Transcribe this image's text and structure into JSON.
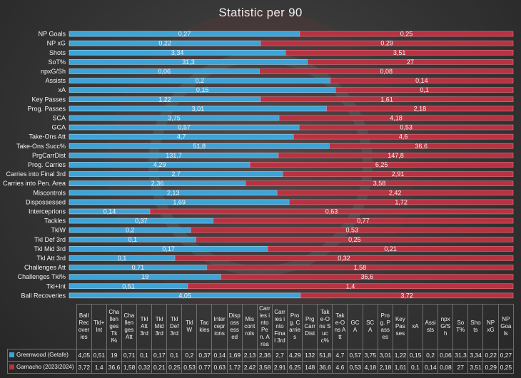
{
  "chart_data": {
    "type": "bar",
    "orientation": "horizontal-stacked-100",
    "title": "Statistic per 90",
    "series": [
      {
        "name": "Greenwood (Getafe)",
        "color": "#3ea3d6",
        "values": [
          0.27,
          0.22,
          3.34,
          31.3,
          0.06,
          0.2,
          0.15,
          1.22,
          3.01,
          3.75,
          0.57,
          4.7,
          51.8,
          131.7,
          4.29,
          2.7,
          2.36,
          2.13,
          1.69,
          0.14,
          0.37,
          0.2,
          0.1,
          0.17,
          0.1,
          0.71,
          19,
          0.51,
          4.05
        ],
        "labels": [
          "0,27",
          "0,22",
          "3,34",
          "31,3",
          "0,06",
          "0,2",
          "0,15",
          "1,22",
          "3,01",
          "3,75",
          "0,57",
          "4,7",
          "51,8",
          "131,7",
          "4,29",
          "2,7",
          "2,36",
          "2,13",
          "1,69",
          "0,14",
          "0,37",
          "0,2",
          "0,1",
          "0,17",
          "0,1",
          "0,71",
          "19",
          "0,51",
          "4,05"
        ]
      },
      {
        "name": "Garnacho (2023/2024)",
        "color": "#b83242",
        "values": [
          0.25,
          0.29,
          3.51,
          27,
          0.08,
          0.14,
          0.1,
          1.61,
          2.18,
          4.18,
          0.53,
          4.6,
          36.6,
          147.8,
          6.25,
          2.91,
          3.58,
          2.42,
          1.72,
          0.63,
          0.77,
          0.53,
          0.25,
          0.21,
          0.32,
          1.58,
          36.6,
          1.4,
          3.72
        ],
        "labels": [
          "0,25",
          "0,29",
          "3,51",
          "27",
          "0,08",
          "0,14",
          "0,1",
          "1,61",
          "2,18",
          "4,18",
          "0,53",
          "4,6",
          "36,6",
          "147,8",
          "6,25",
          "2,91",
          "3,58",
          "2,42",
          "1,72",
          "0,63",
          "0,77",
          "0,53",
          "0,25",
          "0,21",
          "0,32",
          "1,58",
          "36,6",
          "1,4",
          "3,72"
        ]
      }
    ],
    "categories": [
      "NP Goals",
      "NP xG",
      "Shots",
      "SoT%",
      "npxG/Sh",
      "Assists",
      "xA",
      "Key Passes",
      "Prog. Passes",
      "SCA",
      "GCA",
      "Take-Ons Att",
      "Take-Ons Succ%",
      "PrgCarrDist",
      "Prog. Carries",
      "Carries into Final 3rd",
      "Carries into Pen. Area",
      "Miscontrols",
      "Dispossessed",
      "Interceprions",
      "Tackles",
      "TklW",
      "Tkl Def 3rd",
      "Tkl Mid 3rd",
      "Tkl Att 3rd",
      "Challenges Att",
      "Challenges Tkl%",
      "Tkl+Int",
      "Ball Recoveries"
    ],
    "table": {
      "headers": [
        "Ball Recoveries",
        "Tkl+Int",
        "Challenges Tkl%",
        "Challenges Att",
        "Tkl Att 3rd",
        "Tkl Mid 3rd",
        "Tkl Def 3rd",
        "TklW",
        "Tackles",
        "Interceprions",
        "Dispossessed",
        "Miscontrols",
        "Carries into Pen. Area",
        "Carries into Final 3rd",
        "Prog. Carries",
        "PrgCarrDist",
        "Take-Ons Succ%",
        "Take-Ons Att",
        "GCA",
        "SCA",
        "Prog. Passes",
        "Key Passes",
        "xA",
        "Assists",
        "npxG/Sh",
        "SoT%",
        "Shots",
        "NP xG",
        "NP Goals"
      ],
      "rows": [
        [
          "4,05",
          "0,51",
          "19",
          "0,71",
          "0,1",
          "0,17",
          "0,1",
          "0,2",
          "0,37",
          "0,14",
          "1,69",
          "2,13",
          "2,36",
          "2,7",
          "4,29",
          "132",
          "51,8",
          "4,7",
          "0,57",
          "3,75",
          "3,01",
          "1,22",
          "0,15",
          "0,2",
          "0,06",
          "31,3",
          "3,34",
          "0,22",
          "0,27"
        ],
        [
          "3,72",
          "1,4",
          "36,6",
          "1,58",
          "0,32",
          "0,21",
          "0,25",
          "0,53",
          "0,77",
          "0,63",
          "1,72",
          "2,42",
          "3,58",
          "2,91",
          "6,25",
          "148",
          "36,6",
          "4,6",
          "0,53",
          "4,18",
          "2,18",
          "1,61",
          "0,1",
          "0,14",
          "0,08",
          "27",
          "3,51",
          "0,29",
          "0,25"
        ]
      ]
    }
  }
}
